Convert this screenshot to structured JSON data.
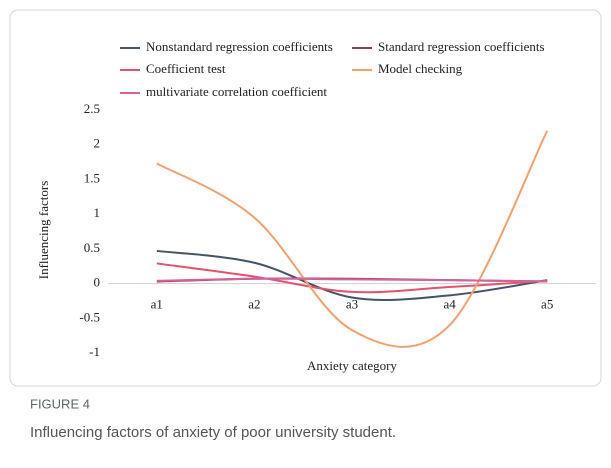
{
  "chart_data": {
    "type": "line",
    "caption_label": "FIGURE 4",
    "caption": "Influencing factors of anxiety of poor university student.",
    "ylabel": "Influencing factors",
    "xlabel": "Anxiety category",
    "categories": [
      "a1",
      "a2",
      "a3",
      "a4",
      "a5"
    ],
    "series": [
      {
        "name": "Nonstandard regression coefficients",
        "color": "#44546a",
        "values": [
          0.47,
          0.3,
          -0.2,
          -0.17,
          0.05
        ]
      },
      {
        "name": "Standard regression coefficients",
        "color": "#8e3b5c",
        "values": [
          0.03,
          0.07,
          0.07,
          0.05,
          0.03
        ]
      },
      {
        "name": "Coefficient test",
        "color": "#e4536e",
        "values": [
          0.29,
          0.1,
          -0.12,
          -0.05,
          0.04
        ]
      },
      {
        "name": "Model checking",
        "color": "#f5a06e",
        "values": [
          1.73,
          0.95,
          -0.67,
          -0.6,
          2.2
        ]
      },
      {
        "name": "multivariate correlation coefficient",
        "color": "#d5629a",
        "values": [
          0.04,
          0.07,
          0.06,
          0.05,
          0.03
        ]
      }
    ],
    "ylim": [
      -1,
      2.5
    ],
    "yticks": [
      -1,
      -0.5,
      0,
      0.5,
      1,
      1.5,
      2,
      2.5
    ],
    "grid": false,
    "smooth": true
  }
}
